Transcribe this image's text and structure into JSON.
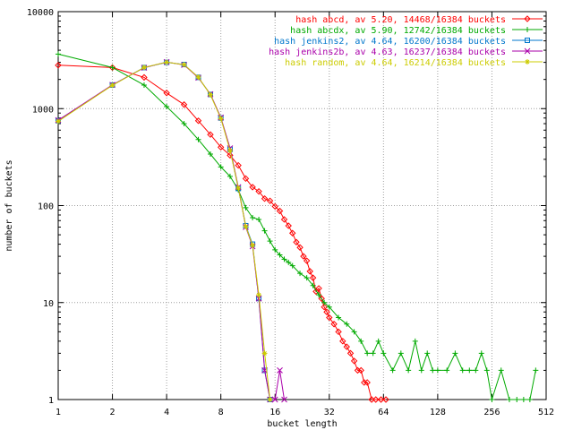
{
  "chart_data": {
    "type": "line",
    "title": "",
    "xlabel": "bucket length",
    "ylabel": "number of buckets",
    "x_scale": "log2",
    "y_scale": "log10",
    "xlim": [
      1,
      512
    ],
    "ylim": [
      1,
      10000
    ],
    "grid": true,
    "legend_position": "top-right",
    "x_ticks": [
      1,
      2,
      4,
      8,
      16,
      32,
      64,
      128,
      256,
      512
    ],
    "y_ticks": [
      1,
      10,
      100,
      1000,
      10000
    ],
    "series": [
      {
        "name": "hash abcd, av 5.20, 14468/16384 buckets",
        "color": "#ff0000",
        "marker": "diamond",
        "x": [
          1,
          2,
          3,
          4,
          5,
          6,
          7,
          8,
          9,
          10,
          11,
          12,
          13,
          14,
          15,
          16,
          17,
          18,
          19,
          20,
          21,
          22,
          23,
          24,
          25,
          26,
          27,
          28,
          29,
          30,
          31,
          32,
          34,
          36,
          38,
          40,
          42,
          44,
          46,
          48,
          50,
          52,
          55,
          58,
          62,
          66
        ],
        "y": [
          2800,
          2650,
          2100,
          1450,
          1100,
          750,
          540,
          400,
          330,
          260,
          190,
          155,
          140,
          118,
          112,
          98,
          88,
          72,
          62,
          52,
          42,
          37,
          30,
          27,
          21,
          18,
          13,
          14,
          11,
          9,
          8,
          7,
          6,
          5,
          4,
          3.5,
          3,
          2.5,
          2,
          2,
          1.5,
          1.5,
          1,
          1,
          1,
          1
        ]
      },
      {
        "name": "hash abcdx, av 5.90, 12742/16384 buckets",
        "color": "#00aa00",
        "marker": "plus",
        "x": [
          1,
          2,
          3,
          4,
          5,
          6,
          7,
          8,
          9,
          10,
          11,
          12,
          13,
          14,
          15,
          16,
          17,
          18,
          19,
          20,
          22,
          24,
          26,
          28,
          30,
          32,
          36,
          40,
          44,
          48,
          52,
          56,
          60,
          64,
          72,
          80,
          88,
          96,
          104,
          112,
          120,
          128,
          144,
          160,
          176,
          192,
          208,
          224,
          240,
          256,
          288,
          320,
          352,
          384,
          416,
          448
        ],
        "y": [
          3650,
          2650,
          1750,
          1050,
          700,
          480,
          340,
          250,
          200,
          145,
          95,
          75,
          72,
          55,
          43,
          35,
          31,
          28,
          26,
          24,
          20,
          18,
          15,
          12,
          10,
          9,
          7,
          6,
          5,
          4,
          3,
          3,
          4,
          3,
          2,
          3,
          2,
          4,
          2,
          3,
          2,
          2,
          2,
          3,
          2,
          2,
          2,
          3,
          2,
          1,
          2,
          1,
          1,
          1,
          1,
          2
        ]
      },
      {
        "name": "hash jenkins2, av 4.64, 16200/16384 buckets",
        "color": "#0077cc",
        "marker": "square",
        "x": [
          1,
          2,
          3,
          4,
          5,
          6,
          7,
          8,
          9,
          10,
          11,
          12,
          13,
          14,
          15
        ],
        "y": [
          750,
          1750,
          2650,
          3000,
          2850,
          2100,
          1400,
          800,
          380,
          150,
          62,
          40,
          11,
          2,
          1
        ]
      },
      {
        "name": "hash jenkins2b, av 4.63, 16237/16384 buckets",
        "color": "#aa00aa",
        "marker": "cross",
        "x": [
          1,
          2,
          3,
          4,
          5,
          6,
          7,
          8,
          9,
          10,
          11,
          12,
          13,
          14,
          15,
          16,
          17,
          18
        ],
        "y": [
          760,
          1760,
          2640,
          3020,
          2820,
          2080,
          1410,
          810,
          390,
          155,
          60,
          38,
          11,
          2,
          1,
          1,
          2,
          1
        ]
      },
      {
        "name": "hash random, av 4.64, 16214/16384 buckets",
        "color": "#cccc00",
        "marker": "star",
        "x": [
          1,
          2,
          3,
          4,
          5,
          6,
          7,
          8,
          9,
          10,
          11,
          12,
          13,
          14,
          15
        ],
        "y": [
          740,
          1740,
          2660,
          3010,
          2840,
          2110,
          1390,
          790,
          370,
          152,
          61,
          39,
          12,
          3,
          1
        ]
      }
    ]
  }
}
